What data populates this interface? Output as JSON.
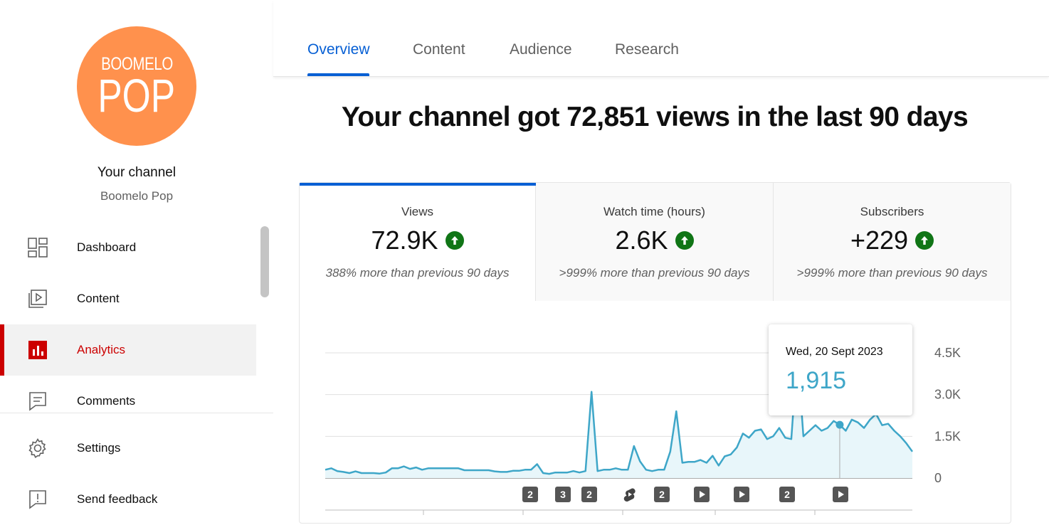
{
  "channel": {
    "avatar_line1": "BOOMELO",
    "avatar_line2": "POP",
    "avatar_color": "#ff914d",
    "title": "Your channel",
    "name": "Boomelo Pop"
  },
  "nav": [
    {
      "label": "Dashboard",
      "icon": "dashboard-icon"
    },
    {
      "label": "Content",
      "icon": "content-icon"
    },
    {
      "label": "Analytics",
      "icon": "analytics-icon",
      "active": true
    },
    {
      "label": "Comments",
      "icon": "comments-icon"
    },
    {
      "label": "Settings",
      "icon": "gear-icon"
    },
    {
      "label": "Send feedback",
      "icon": "feedback-icon"
    }
  ],
  "tabs": [
    {
      "label": "Overview",
      "active": true
    },
    {
      "label": "Content"
    },
    {
      "label": "Audience"
    },
    {
      "label": "Research"
    }
  ],
  "headline": "Your channel got 72,851 views in the last 90 days",
  "metrics": [
    {
      "label": "Views",
      "value": "72.9K",
      "note": "388% more than previous 90 days",
      "selected": true
    },
    {
      "label": "Watch time (hours)",
      "value": "2.6K",
      "note": ">999% more than previous 90 days"
    },
    {
      "label": "Subscribers",
      "value": "+229",
      "note": ">999% more than previous 90 days"
    }
  ],
  "colors": {
    "accent": "#065fd4",
    "active": "#cc0000",
    "up": "#107516",
    "line": "#3ea6c8"
  },
  "tooltip": {
    "date": "Wed, 20 Sept 2023",
    "value": "1,915"
  },
  "markers": [
    "2",
    "3",
    "2",
    "shorts-icon",
    "2",
    "play-icon",
    "play-icon",
    "2",
    "play-icon"
  ],
  "chart_data": {
    "type": "area",
    "y_ticks": [
      "4.5K",
      "3.0K",
      "1.5K",
      "0"
    ],
    "ylim": [
      0,
      5000
    ],
    "grid": true,
    "series": [
      {
        "values": [
          300,
          350,
          250,
          220,
          180,
          240,
          180,
          180,
          180,
          160,
          200,
          350,
          350,
          420,
          330,
          380,
          300,
          350,
          350,
          350,
          350,
          350,
          350,
          280,
          280,
          280,
          280,
          280,
          240,
          220,
          220,
          260,
          260,
          300,
          300,
          500,
          180,
          150,
          200,
          200,
          200,
          250,
          200,
          250,
          3100,
          250,
          300,
          300,
          350,
          300,
          300,
          1150,
          600,
          300,
          250,
          300,
          300,
          950,
          2400,
          550,
          580,
          580,
          650,
          550,
          800,
          450,
          780,
          850,
          1100,
          1600,
          1450,
          1700,
          1750,
          1400,
          1500,
          1800,
          1450,
          1400,
          4500,
          1500,
          1700,
          1900,
          1700,
          1800,
          2050,
          1915,
          1700,
          2100,
          2000,
          1800,
          2100,
          2300,
          1900,
          1950,
          1700,
          1500,
          1250,
          950
        ]
      }
    ]
  }
}
